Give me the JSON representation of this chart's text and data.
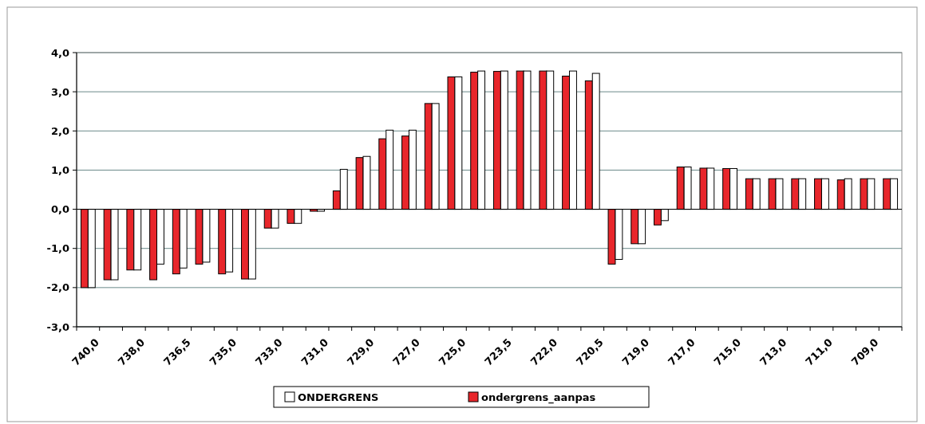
{
  "chart_data": {
    "type": "bar",
    "categories": [
      "740,0",
      null,
      "738,0",
      null,
      "736,5",
      null,
      "735,0",
      null,
      "733,0",
      null,
      "731,0",
      null,
      "729,0",
      null,
      "727,0",
      null,
      "725,0",
      null,
      "723,5",
      null,
      "722,0",
      null,
      "720,5",
      null,
      "719,0",
      null,
      "717,0",
      null,
      "715,0",
      null,
      "713,0",
      null,
      "711,0",
      null,
      "709,0",
      null
    ],
    "series": [
      {
        "name": "ondergrens_aanpas",
        "color": "#e8262b",
        "values": [
          -2.0,
          -1.8,
          -1.55,
          -1.8,
          -1.65,
          -1.4,
          -1.65,
          -1.78,
          -0.48,
          -0.36,
          -0.05,
          0.47,
          1.32,
          1.8,
          1.87,
          2.7,
          3.38,
          3.5,
          3.52,
          3.53,
          3.53,
          3.4,
          3.28,
          -1.4,
          -0.88,
          -0.4,
          1.08,
          1.05,
          1.04,
          0.78,
          0.78,
          0.78,
          0.78,
          0.75,
          0.78,
          0.78
        ]
      },
      {
        "name": "ONDERGRENS",
        "color": "#ffffff",
        "values": [
          -2.0,
          -1.8,
          -1.55,
          -1.4,
          -1.5,
          -1.35,
          -1.6,
          -1.78,
          -0.48,
          -0.36,
          -0.05,
          1.02,
          1.35,
          2.02,
          2.02,
          2.7,
          3.38,
          3.53,
          3.53,
          3.53,
          3.53,
          3.53,
          3.47,
          -1.28,
          -0.88,
          -0.29,
          1.08,
          1.05,
          1.04,
          0.78,
          0.78,
          0.78,
          0.78,
          0.78,
          0.78,
          0.78
        ]
      }
    ],
    "ylim": [
      -3,
      4
    ],
    "yticks": [
      {
        "value": -3,
        "label": "-3,0"
      },
      {
        "value": -2,
        "label": "-2,0"
      },
      {
        "value": -1,
        "label": "-1,0"
      },
      {
        "value": 0,
        "label": "0,0"
      },
      {
        "value": 1,
        "label": "1,0"
      },
      {
        "value": 2,
        "label": "2,0"
      },
      {
        "value": 3,
        "label": "3,0"
      },
      {
        "value": 4,
        "label": "4,0"
      }
    ],
    "grid": "y",
    "legend": "bottom"
  }
}
